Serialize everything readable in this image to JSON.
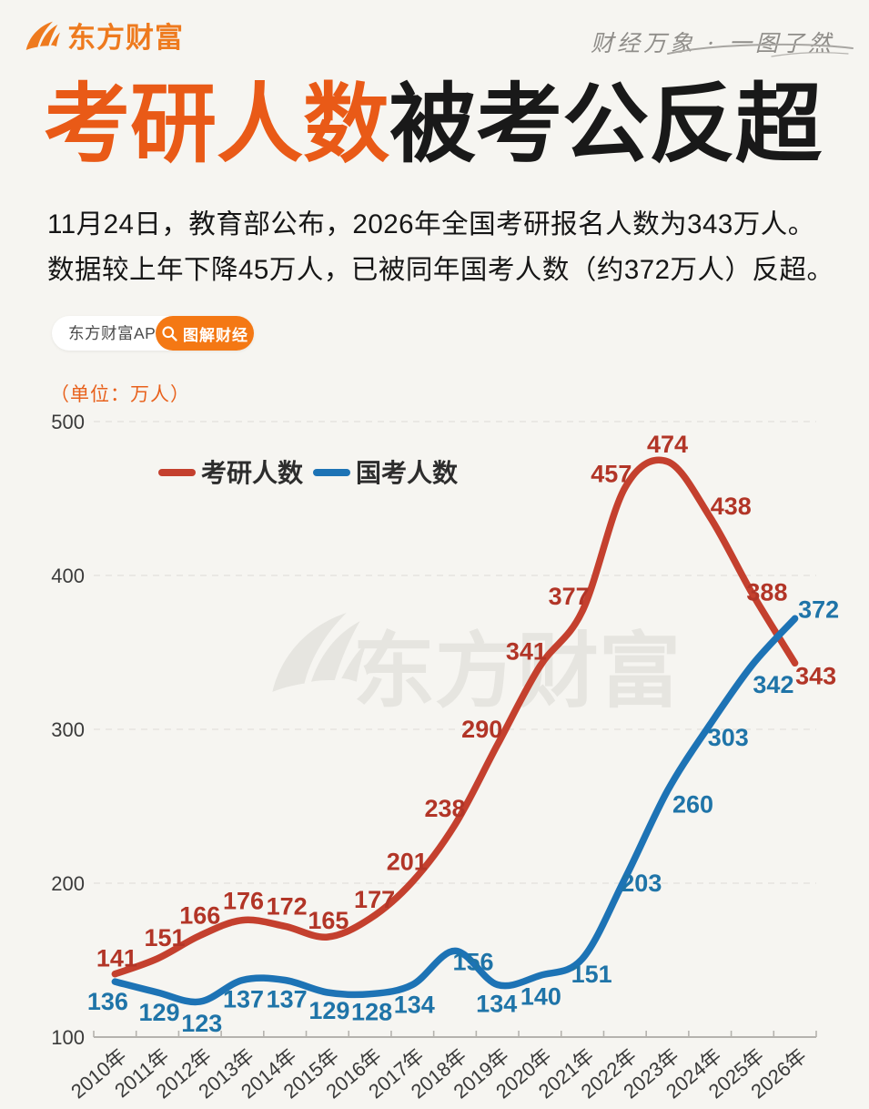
{
  "header": {
    "brand": "东方财富",
    "brand_icon": "eastmoney-swoosh-icon",
    "tagline": "财经万象 · 一图了然"
  },
  "title": {
    "highlight": "考研人数",
    "rest": "被考公反超"
  },
  "intro": {
    "line1": "11月24日，教育部公布，2026年全国考研报名人数为343万人。",
    "line2": "数据较上年下降45万人，已被同年国考人数（约372万人）反超。"
  },
  "badges": {
    "app_label": "东方财富APP",
    "column_label": "图解财经",
    "column_icon": "magnifier-icon"
  },
  "unit_label": "（单位：万人）",
  "watermark": "东方财富",
  "colors": {
    "background": "#f6f5f1",
    "title_orange": "#e95a17",
    "brand_orange": "#ee7a1e",
    "badge_orange": "#f47814",
    "red_line": "#c4402e",
    "red_label": "#b23527",
    "blue_line": "#1d73b5",
    "blue_label": "#1f74a8",
    "axis": "#b5b3ae",
    "grid": "#e6e4df",
    "tick_text": "#3b3b3b"
  },
  "chart_data": {
    "type": "line",
    "categories": [
      "2010年",
      "2011年",
      "2012年",
      "2013年",
      "2014年",
      "2015年",
      "2016年",
      "2017年",
      "2018年",
      "2019年",
      "2020年",
      "2021年",
      "2022年",
      "2023年",
      "2024年",
      "2025年",
      "2026年"
    ],
    "series": [
      {
        "name": "考研人数",
        "color": "#c4402e",
        "label_color": "#b23527",
        "values": [
          141,
          151,
          166,
          176,
          172,
          165,
          177,
          201,
          238,
          290,
          341,
          377,
          457,
          474,
          438,
          388,
          343
        ],
        "label_dx": [
          2,
          8,
          0,
          1,
          2,
          1,
          5,
          -6,
          -11,
          -17,
          -15,
          -15,
          -15,
          0,
          23,
          16,
          23
        ],
        "label_dy": [
          -17,
          -23,
          -22,
          -21,
          -22,
          -18,
          -21,
          -22,
          -18,
          -17,
          -16,
          -16,
          -15,
          -19,
          -12,
          -2,
          14
        ]
      },
      {
        "name": "国考人数",
        "color": "#1d73b5",
        "label_color": "#1f74a8",
        "values": [
          136,
          129,
          123,
          137,
          137,
          129,
          128,
          134,
          156,
          134,
          140,
          151,
          203,
          260,
          303,
          342,
          372
        ],
        "label_dx": [
          -8,
          2,
          2,
          1,
          2,
          2,
          2,
          2,
          20,
          -1,
          1,
          10,
          18,
          28,
          20,
          23,
          26
        ],
        "label_dy": [
          22,
          22,
          24,
          21,
          21,
          20,
          20,
          22,
          12,
          21,
          23,
          17,
          5,
          15,
          14,
          22,
          -10
        ]
      }
    ],
    "ylim": [
      100,
      500
    ],
    "yticks": [
      100,
      200,
      300,
      400,
      500
    ],
    "grid": "horizontal-dashed",
    "legend_position": "inside-top-left",
    "x_label_rotation": -40
  }
}
